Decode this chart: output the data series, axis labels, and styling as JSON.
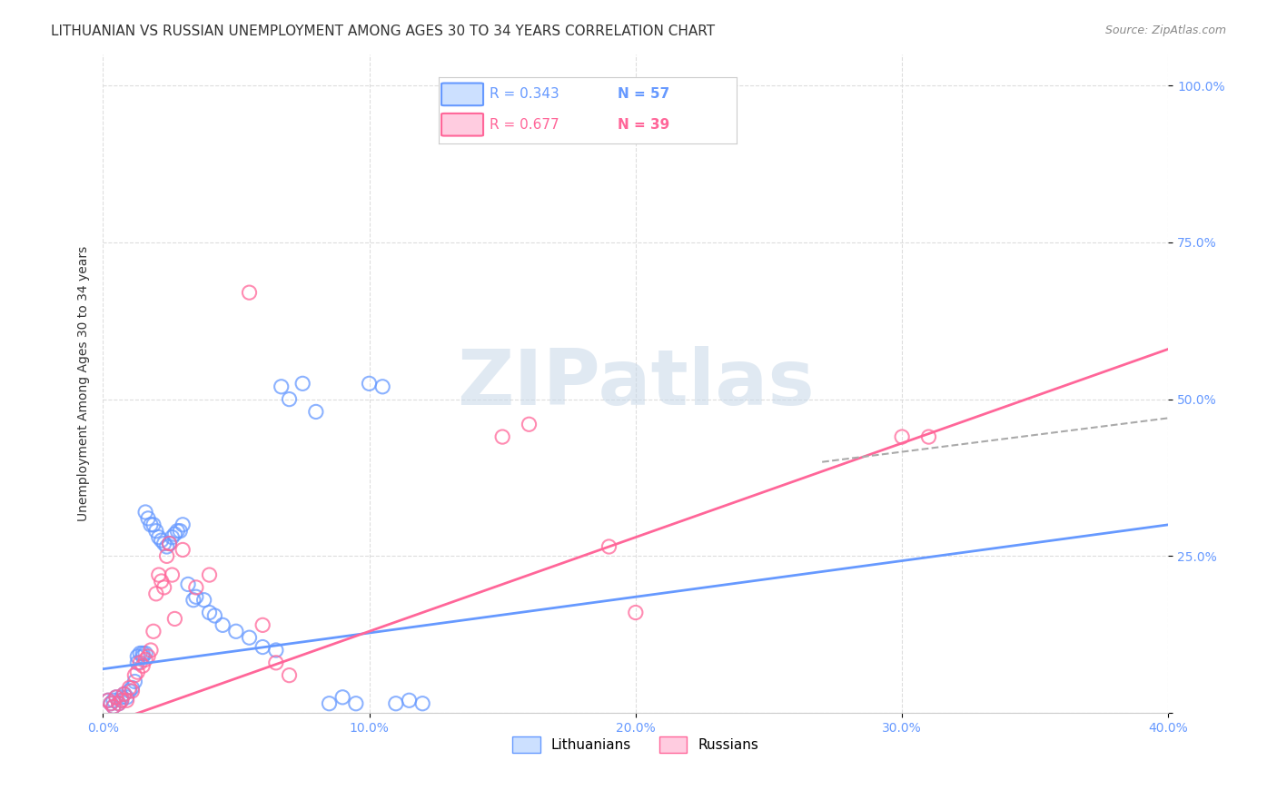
{
  "title": "LITHUANIAN VS RUSSIAN UNEMPLOYMENT AMONG AGES 30 TO 34 YEARS CORRELATION CHART",
  "source": "Source: ZipAtlas.com",
  "ylabel": "Unemployment Among Ages 30 to 34 years",
  "blue_color": "#6699ff",
  "pink_color": "#ff6699",
  "blue_R": "0.343",
  "blue_N": "57",
  "pink_R": "0.677",
  "pink_N": "39",
  "xlim": [
    0.0,
    0.4
  ],
  "ylim": [
    0.0,
    1.05
  ],
  "blue_scatter_x": [
    0.002,
    0.003,
    0.004,
    0.004,
    0.005,
    0.006,
    0.007,
    0.007,
    0.008,
    0.009,
    0.01,
    0.011,
    0.012,
    0.013,
    0.013,
    0.014,
    0.015,
    0.015,
    0.016,
    0.016,
    0.017,
    0.018,
    0.019,
    0.02,
    0.021,
    0.022,
    0.023,
    0.024,
    0.025,
    0.026,
    0.027,
    0.028,
    0.029,
    0.03,
    0.032,
    0.034,
    0.035,
    0.038,
    0.04,
    0.042,
    0.045,
    0.05,
    0.055,
    0.06,
    0.065,
    0.067,
    0.07,
    0.075,
    0.08,
    0.085,
    0.09,
    0.095,
    0.1,
    0.105,
    0.11,
    0.115,
    0.12
  ],
  "blue_scatter_y": [
    0.02,
    0.015,
    0.01,
    0.02,
    0.025,
    0.015,
    0.02,
    0.025,
    0.03,
    0.025,
    0.035,
    0.04,
    0.05,
    0.08,
    0.09,
    0.095,
    0.09,
    0.095,
    0.095,
    0.32,
    0.31,
    0.3,
    0.3,
    0.29,
    0.28,
    0.275,
    0.27,
    0.265,
    0.27,
    0.28,
    0.285,
    0.29,
    0.29,
    0.3,
    0.205,
    0.18,
    0.185,
    0.18,
    0.16,
    0.155,
    0.14,
    0.13,
    0.12,
    0.105,
    0.1,
    0.52,
    0.5,
    0.525,
    0.48,
    0.015,
    0.025,
    0.015,
    0.525,
    0.52,
    0.015,
    0.02,
    0.015
  ],
  "pink_scatter_x": [
    0.002,
    0.003,
    0.004,
    0.005,
    0.006,
    0.007,
    0.008,
    0.009,
    0.01,
    0.011,
    0.012,
    0.013,
    0.014,
    0.015,
    0.016,
    0.017,
    0.018,
    0.019,
    0.02,
    0.021,
    0.022,
    0.023,
    0.024,
    0.025,
    0.026,
    0.027,
    0.03,
    0.035,
    0.04,
    0.055,
    0.06,
    0.065,
    0.07,
    0.15,
    0.16,
    0.19,
    0.2,
    0.3,
    0.31
  ],
  "pink_scatter_y": [
    0.02,
    0.015,
    0.01,
    0.025,
    0.015,
    0.02,
    0.03,
    0.02,
    0.04,
    0.035,
    0.06,
    0.065,
    0.08,
    0.075,
    0.085,
    0.09,
    0.1,
    0.13,
    0.19,
    0.22,
    0.21,
    0.2,
    0.25,
    0.27,
    0.22,
    0.15,
    0.26,
    0.2,
    0.22,
    0.67,
    0.14,
    0.08,
    0.06,
    0.44,
    0.46,
    0.265,
    0.16,
    0.44,
    0.44
  ],
  "blue_line_x": [
    0.0,
    0.4
  ],
  "blue_line_y": [
    0.07,
    0.3
  ],
  "pink_line_x": [
    0.0,
    0.4
  ],
  "pink_line_y": [
    -0.02,
    0.58
  ],
  "dashed_line_x": [
    0.27,
    0.4
  ],
  "dashed_line_y": [
    0.4,
    0.47
  ],
  "watermark": "ZIPatlas",
  "background_color": "#ffffff",
  "grid_color": "#dddddd"
}
